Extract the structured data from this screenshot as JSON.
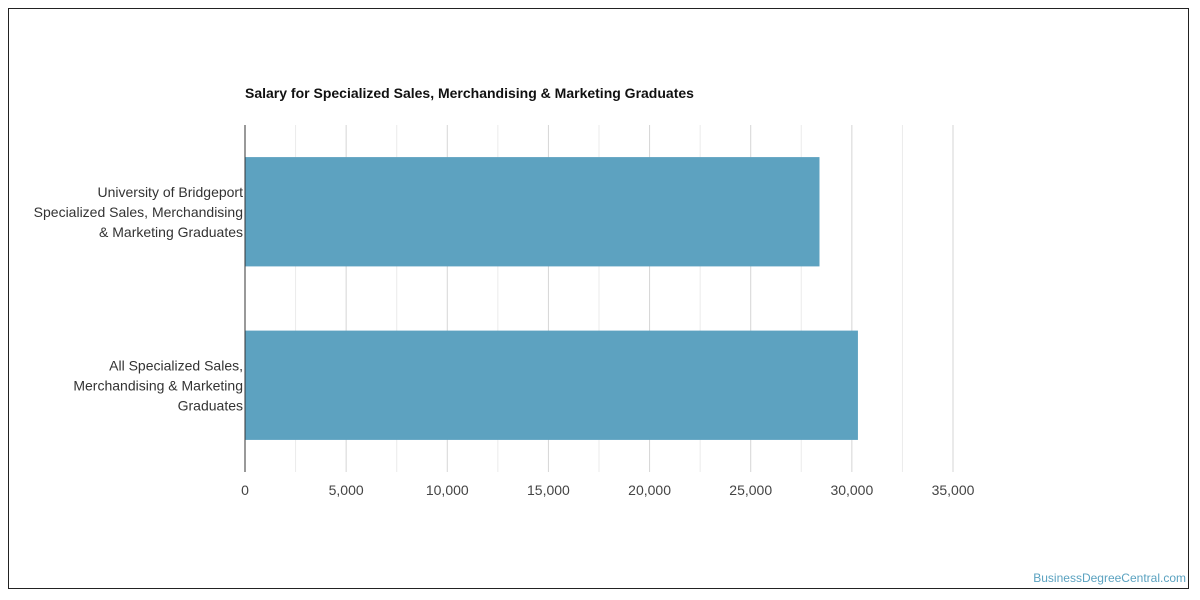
{
  "chart_data": {
    "type": "bar",
    "orientation": "horizontal",
    "title": "Salary for Specialized Sales, Merchandising & Marketing Graduates",
    "categories": [
      [
        "University of Bridgeport",
        "Specialized Sales, Merchandising",
        "& Marketing Graduates"
      ],
      [
        "All Specialized Sales,",
        "Merchandising & Marketing",
        "Graduates"
      ]
    ],
    "values": [
      28400,
      30300
    ],
    "xlim": [
      0,
      35000
    ],
    "ticks": [
      0,
      5000,
      10000,
      15000,
      20000,
      25000,
      30000,
      35000
    ],
    "tick_labels": [
      "0",
      "5,000",
      "10,000",
      "15,000",
      "20,000",
      "25,000",
      "30,000",
      "35,000"
    ],
    "grid": true,
    "bar_color": "#5da2c0",
    "xlabel": "",
    "ylabel": ""
  },
  "watermark": "BusinessDegreeCentral.com"
}
